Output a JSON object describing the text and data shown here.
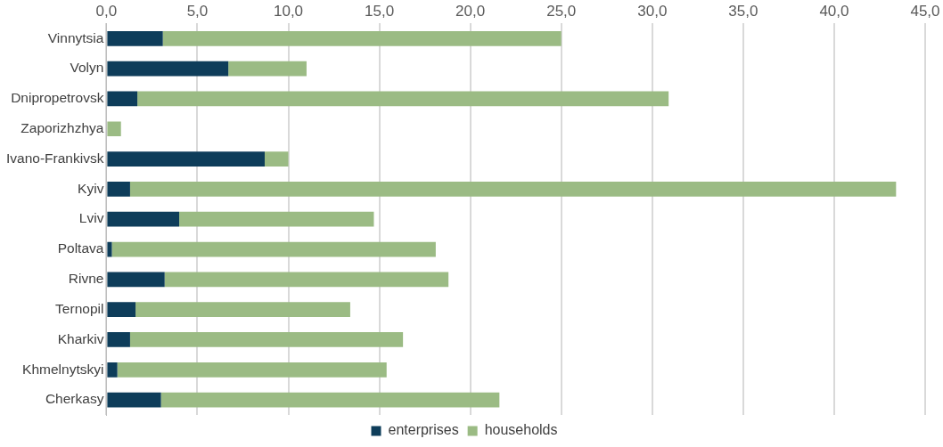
{
  "chart_data": {
    "type": "bar",
    "orientation": "horizontal",
    "stacked": true,
    "categories": [
      "Vinnytsia",
      "Volyn",
      "Dnipropetrovsk",
      "Zaporizhzhya",
      "Ivano-Frankivsk",
      "Kyiv",
      "Lviv",
      "Poltava",
      "Rivne",
      "Ternopil",
      "Kharkiv",
      "Khmelnytskyi",
      "Cherkasy"
    ],
    "series": [
      {
        "name": "enterprises",
        "color": "#0e3d5a",
        "values": [
          3.1,
          6.7,
          1.7,
          0,
          8.7,
          1.3,
          4.0,
          0.3,
          3.2,
          1.6,
          1.3,
          0.6,
          3.0
        ]
      },
      {
        "name": "households",
        "color": "#9bbb84",
        "values": [
          21.9,
          4.3,
          29.2,
          0.8,
          1.3,
          42.1,
          10.7,
          17.8,
          15.6,
          11.8,
          15.0,
          14.8,
          18.6
        ]
      }
    ],
    "xlim": [
      0,
      45
    ],
    "xticks": [
      {
        "value": 0,
        "label": "0,0"
      },
      {
        "value": 5,
        "label": "5,0"
      },
      {
        "value": 10,
        "label": "10,0"
      },
      {
        "value": 15,
        "label": "15,0"
      },
      {
        "value": 20,
        "label": "20,0"
      },
      {
        "value": 25,
        "label": "25,0"
      },
      {
        "value": 30,
        "label": "30,0"
      },
      {
        "value": 35,
        "label": "35,0"
      },
      {
        "value": 40,
        "label": "40,0"
      },
      {
        "value": 45,
        "label": "45,0"
      }
    ],
    "grid": "x",
    "legend": "bottom"
  }
}
